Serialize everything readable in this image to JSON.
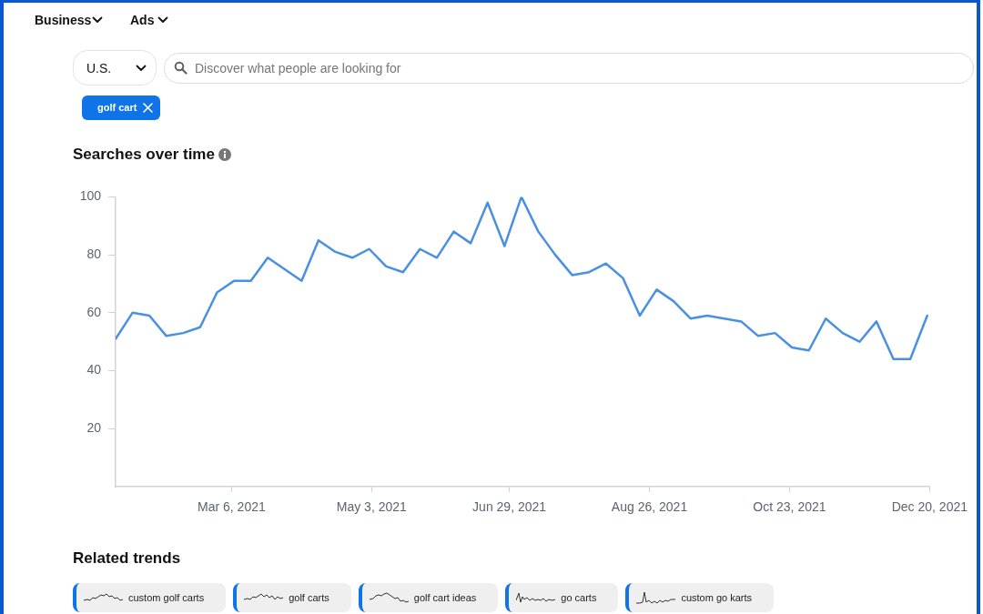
{
  "chart_data": {
    "type": "line",
    "title": "Searches over time",
    "annotations": [
      "Business",
      "Ads",
      "U.S.",
      "Discover what people are looking for",
      "golf cart",
      "Related trends",
      "custom golf carts",
      "golf carts",
      "golf cart ideas",
      "go carts",
      "custom go karts"
    ],
    "x": [
      "2021-01-17",
      "2021-01-24",
      "2021-01-31",
      "2021-02-07",
      "2021-02-14",
      "2021-02-21",
      "2021-02-28",
      "2021-03-07",
      "2021-03-14",
      "2021-03-21",
      "2021-03-28",
      "2021-04-04",
      "2021-04-11",
      "2021-04-18",
      "2021-04-25",
      "2021-05-02",
      "2021-05-09",
      "2021-05-16",
      "2021-05-23",
      "2021-05-30",
      "2021-06-06",
      "2021-06-13",
      "2021-06-20",
      "2021-06-27",
      "2021-07-04",
      "2021-07-11",
      "2021-07-18",
      "2021-07-25",
      "2021-08-01",
      "2021-08-08",
      "2021-08-15",
      "2021-08-22",
      "2021-08-29",
      "2021-09-05",
      "2021-09-12",
      "2021-09-19",
      "2021-09-26",
      "2021-10-03",
      "2021-10-10",
      "2021-10-17",
      "2021-10-24",
      "2021-10-31",
      "2021-11-07",
      "2021-11-14",
      "2021-11-21",
      "2021-11-28",
      "2021-12-05",
      "2021-12-12",
      "2021-12-19"
    ],
    "series": [
      {
        "color": "#4a90e2",
        "values": [
          51,
          60,
          59,
          52,
          53,
          55,
          67,
          71,
          71,
          79,
          75,
          71,
          85,
          81,
          79,
          82,
          76,
          74,
          82,
          79,
          88,
          84,
          98,
          83,
          100,
          88,
          80,
          73,
          74,
          77,
          72,
          59,
          68,
          64,
          58,
          59,
          58,
          57,
          52,
          53,
          48,
          47,
          58,
          53,
          50,
          57,
          44,
          44,
          59
        ]
      }
    ],
    "xlim": [
      "2021-01-17",
      "2021-12-20"
    ],
    "xticks": [
      {
        "value": "2021-03-06",
        "label": "Mar 6, 2021"
      },
      {
        "value": "2021-05-03",
        "label": "May 3, 2021"
      },
      {
        "value": "2021-06-29",
        "label": "Jun 29, 2021"
      },
      {
        "value": "2021-08-26",
        "label": "Aug 26, 2021"
      },
      {
        "value": "2021-10-23",
        "label": "Oct 23, 2021"
      },
      {
        "value": "2021-12-20",
        "label": "Dec 20, 2021"
      }
    ],
    "ylim": [
      0,
      100
    ],
    "yticks": [
      20,
      40,
      60,
      80,
      100
    ]
  }
}
